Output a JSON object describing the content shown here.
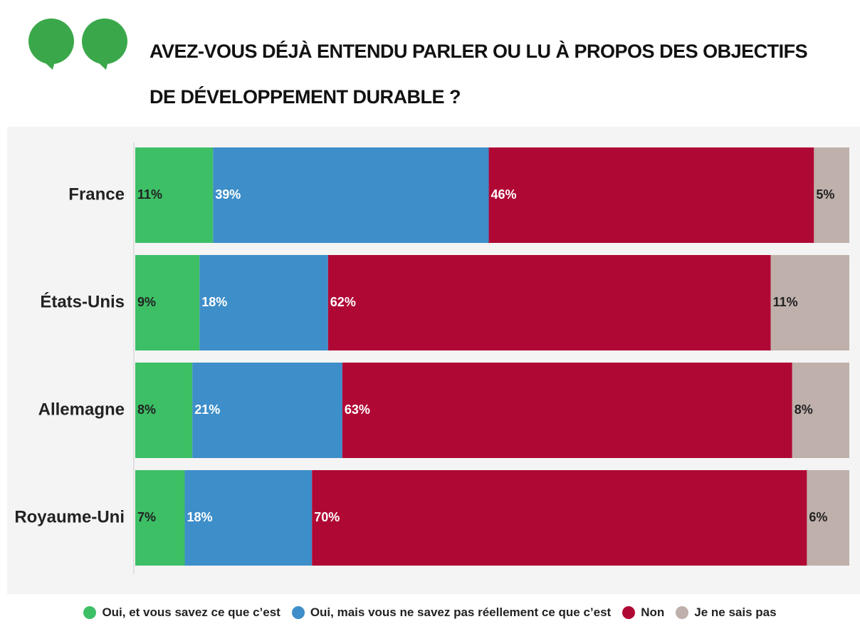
{
  "chart_data": {
    "type": "stacked-bar-horizontal",
    "title": "AVEZ-VOUS DÉJÀ ENTENDU PARLER OU LU À PROPOS DES OBJECTIFS DE DÉVELOPPEMENT DURABLE ?",
    "categories": [
      "France",
      "États-Unis",
      "Allemagne",
      "Royaume-Uni"
    ],
    "series": [
      {
        "name": "Oui, et vous savez ce que c’est",
        "color": "#3dbf66",
        "values": [
          11,
          9,
          8,
          7
        ],
        "value_labels": [
          "11%",
          "9%",
          "8%",
          "7%"
        ]
      },
      {
        "name": "Oui, mais vous ne savez pas réellement ce que c’est",
        "color": "#3d8ec9",
        "values": [
          39,
          18,
          21,
          18
        ],
        "value_labels": [
          "39%",
          "18%",
          "21%",
          "18%"
        ]
      },
      {
        "name": "Non",
        "color": "#b00835",
        "values": [
          46,
          62,
          63,
          70
        ],
        "value_labels": [
          "46%",
          "62%",
          "63%",
          "70%"
        ]
      },
      {
        "name": "Je ne sais pas",
        "color": "#bfb0ab",
        "values": [
          5,
          11,
          8,
          6
        ],
        "value_labels": [
          "5%",
          "11%",
          "8%",
          "6%"
        ]
      }
    ]
  }
}
